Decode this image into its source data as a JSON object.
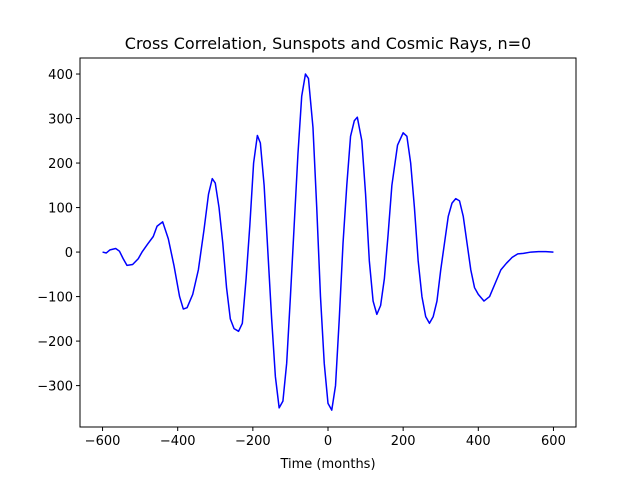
{
  "chart_data": {
    "type": "line",
    "title": "Cross Correlation, Sunspots and Cosmic Rays, n=0",
    "xlabel": "Time (months)",
    "color": "#0000ff",
    "x": [
      -600,
      -590,
      -580,
      -565,
      -555,
      -545,
      -535,
      -520,
      -505,
      -495,
      -480,
      -465,
      -455,
      -440,
      -425,
      -410,
      -395,
      -385,
      -375,
      -360,
      -345,
      -330,
      -318,
      -308,
      -300,
      -290,
      -280,
      -270,
      -260,
      -250,
      -238,
      -228,
      -218,
      -208,
      -198,
      -188,
      -180,
      -170,
      -160,
      -150,
      -140,
      -130,
      -120,
      -110,
      -100,
      -90,
      -80,
      -70,
      -60,
      -52,
      -40,
      -30,
      -20,
      -10,
      0,
      10,
      20,
      30,
      40,
      50,
      60,
      70,
      78,
      90,
      100,
      110,
      120,
      130,
      140,
      150,
      160,
      170,
      185,
      200,
      210,
      220,
      230,
      240,
      250,
      260,
      270,
      280,
      290,
      300,
      310,
      320,
      330,
      340,
      350,
      360,
      370,
      380,
      390,
      400,
      415,
      430,
      445,
      460,
      475,
      490,
      505,
      520,
      540,
      560,
      580,
      600
    ],
    "values": [
      0,
      -2,
      5,
      8,
      2,
      -15,
      -30,
      -28,
      -15,
      0,
      18,
      35,
      58,
      68,
      30,
      -30,
      -100,
      -128,
      -125,
      -95,
      -40,
      50,
      130,
      165,
      155,
      100,
      20,
      -80,
      -150,
      -172,
      -178,
      -160,
      -60,
      60,
      200,
      262,
      245,
      150,
      0,
      -150,
      -280,
      -350,
      -335,
      -250,
      -100,
      60,
      220,
      350,
      400,
      390,
      280,
      100,
      -100,
      -250,
      -340,
      -355,
      -300,
      -150,
      20,
      150,
      260,
      295,
      303,
      250,
      130,
      -20,
      -110,
      -140,
      -120,
      -60,
      40,
      150,
      240,
      268,
      260,
      200,
      100,
      -20,
      -100,
      -145,
      -160,
      -145,
      -110,
      -40,
      20,
      80,
      110,
      120,
      115,
      80,
      20,
      -40,
      -80,
      -95,
      -110,
      -100,
      -70,
      -40,
      -25,
      -12,
      -4,
      -3,
      0,
      1,
      1,
      0
    ],
    "xlim": [
      -660,
      660
    ],
    "ylim": [
      -393,
      436
    ],
    "xticks": [
      {
        "value": -600,
        "label": "−600"
      },
      {
        "value": -400,
        "label": "−400"
      },
      {
        "value": -200,
        "label": "−200"
      },
      0,
      200,
      400,
      600
    ],
    "yticks": [
      {
        "value": -300,
        "label": "−300"
      },
      {
        "value": -200,
        "label": "−200"
      },
      {
        "value": -100,
        "label": "−100"
      },
      0,
      100,
      200,
      300,
      400
    ]
  }
}
